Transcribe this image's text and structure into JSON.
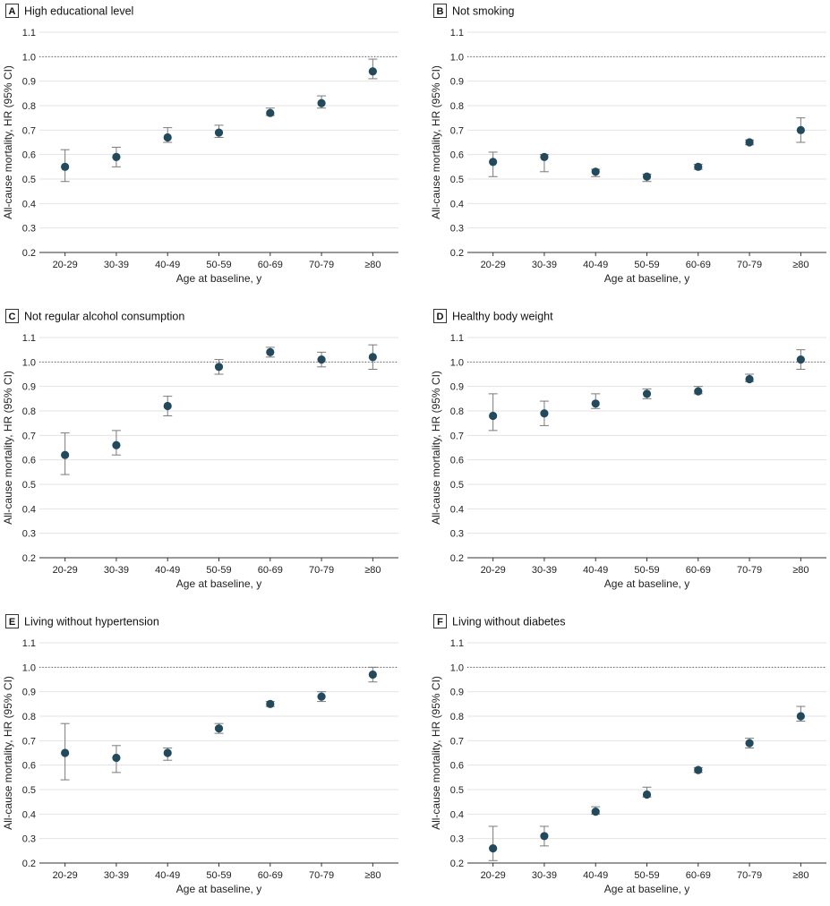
{
  "colors": {
    "point": "#234a5c",
    "errorbar": "#7a7a7a",
    "grid": "#e3e3e3"
  },
  "chart_data": [
    {
      "type": "scatter",
      "letter": "A",
      "title": "High educational level",
      "xlabel": "Age at baseline, y",
      "ylabel": "All-cause mortality, HR (95% CI)",
      "categories": [
        "20-29",
        "30-39",
        "40-49",
        "50-59",
        "60-69",
        "70-79",
        "≥80"
      ],
      "yticks": [
        "0.2",
        "0.3",
        "0.4",
        "0.5",
        "0.6",
        "0.7",
        "0.8",
        "0.9",
        "1.0",
        "1.1"
      ],
      "ylim": [
        0.2,
        1.1
      ],
      "reference_line": 1.0,
      "grid": true,
      "values": [
        0.55,
        0.59,
        0.67,
        0.69,
        0.77,
        0.81,
        0.94
      ],
      "ci_lower": [
        0.49,
        0.55,
        0.65,
        0.67,
        0.76,
        0.79,
        0.91
      ],
      "ci_upper": [
        0.62,
        0.63,
        0.71,
        0.72,
        0.79,
        0.84,
        0.99
      ]
    },
    {
      "type": "scatter",
      "letter": "B",
      "title": "Not smoking",
      "xlabel": "Age at baseline, y",
      "ylabel": "All-cause mortality, HR (95% CI)",
      "categories": [
        "20-29",
        "30-39",
        "40-49",
        "50-59",
        "60-69",
        "70-79",
        "≥80"
      ],
      "yticks": [
        "0.2",
        "0.3",
        "0.4",
        "0.5",
        "0.6",
        "0.7",
        "0.8",
        "0.9",
        "1.0",
        "1.1"
      ],
      "ylim": [
        0.2,
        1.1
      ],
      "reference_line": 1.0,
      "grid": true,
      "values": [
        0.57,
        0.59,
        0.53,
        0.51,
        0.55,
        0.65,
        0.7
      ],
      "ci_lower": [
        0.51,
        0.53,
        0.51,
        0.49,
        0.54,
        0.64,
        0.65
      ],
      "ci_upper": [
        0.61,
        0.6,
        0.54,
        0.52,
        0.56,
        0.66,
        0.75
      ]
    },
    {
      "type": "scatter",
      "letter": "C",
      "title": "Not regular alcohol consumption",
      "xlabel": "Age at baseline, y",
      "ylabel": "All-cause mortality, HR (95% CI)",
      "categories": [
        "20-29",
        "30-39",
        "40-49",
        "50-59",
        "60-69",
        "70-79",
        "≥80"
      ],
      "yticks": [
        "0.2",
        "0.3",
        "0.4",
        "0.5",
        "0.6",
        "0.7",
        "0.8",
        "0.9",
        "1.0",
        "1.1"
      ],
      "ylim": [
        0.2,
        1.1
      ],
      "reference_line": 1.0,
      "grid": true,
      "values": [
        0.62,
        0.66,
        0.82,
        0.98,
        1.04,
        1.01,
        1.02
      ],
      "ci_lower": [
        0.54,
        0.62,
        0.78,
        0.95,
        1.02,
        0.98,
        0.97
      ],
      "ci_upper": [
        0.71,
        0.72,
        0.86,
        1.01,
        1.06,
        1.04,
        1.07
      ]
    },
    {
      "type": "scatter",
      "letter": "D",
      "title": "Healthy body weight",
      "xlabel": "Age at baseline, y",
      "ylabel": "All-cause mortality, HR (95% CI)",
      "categories": [
        "20-29",
        "30-39",
        "40-49",
        "50-59",
        "60-69",
        "70-79",
        "≥80"
      ],
      "yticks": [
        "0.2",
        "0.3",
        "0.4",
        "0.5",
        "0.6",
        "0.7",
        "0.8",
        "0.9",
        "1.0",
        "1.1"
      ],
      "ylim": [
        0.2,
        1.1
      ],
      "reference_line": 1.0,
      "grid": true,
      "values": [
        0.78,
        0.79,
        0.83,
        0.87,
        0.88,
        0.93,
        1.01
      ],
      "ci_lower": [
        0.72,
        0.74,
        0.81,
        0.85,
        0.87,
        0.92,
        0.97
      ],
      "ci_upper": [
        0.87,
        0.84,
        0.87,
        0.89,
        0.9,
        0.95,
        1.05
      ]
    },
    {
      "type": "scatter",
      "letter": "E",
      "title": "Living without hypertension",
      "xlabel": "Age at baseline, y",
      "ylabel": "All-cause mortality, HR (95% CI)",
      "categories": [
        "20-29",
        "30-39",
        "40-49",
        "50-59",
        "60-69",
        "70-79",
        "≥80"
      ],
      "yticks": [
        "0.2",
        "0.3",
        "0.4",
        "0.5",
        "0.6",
        "0.7",
        "0.8",
        "0.9",
        "1.0",
        "1.1"
      ],
      "ylim": [
        0.2,
        1.1
      ],
      "reference_line": 1.0,
      "grid": true,
      "values": [
        0.65,
        0.63,
        0.65,
        0.75,
        0.85,
        0.88,
        0.97
      ],
      "ci_lower": [
        0.54,
        0.57,
        0.62,
        0.73,
        0.84,
        0.86,
        0.94
      ],
      "ci_upper": [
        0.77,
        0.68,
        0.67,
        0.77,
        0.86,
        0.9,
        1.0
      ]
    },
    {
      "type": "scatter",
      "letter": "F",
      "title": "Living without diabetes",
      "xlabel": "Age at baseline, y",
      "ylabel": "All-cause mortality, HR (95% CI)",
      "categories": [
        "20-29",
        "30-39",
        "40-49",
        "50-59",
        "60-69",
        "70-79",
        "≥80"
      ],
      "yticks": [
        "0.2",
        "0.3",
        "0.4",
        "0.5",
        "0.6",
        "0.7",
        "0.8",
        "0.9",
        "1.0",
        "1.1"
      ],
      "ylim": [
        0.2,
        1.1
      ],
      "reference_line": 1.0,
      "grid": true,
      "values": [
        0.26,
        0.31,
        0.41,
        0.48,
        0.58,
        0.69,
        0.8
      ],
      "ci_lower": [
        0.21,
        0.27,
        0.4,
        0.47,
        0.57,
        0.67,
        0.78
      ],
      "ci_upper": [
        0.35,
        0.35,
        0.43,
        0.51,
        0.59,
        0.71,
        0.84
      ]
    }
  ]
}
